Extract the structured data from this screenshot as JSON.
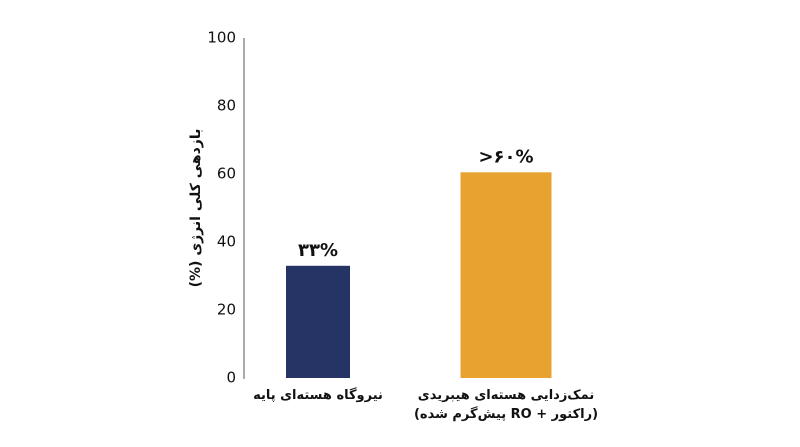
{
  "chart_data": {
    "type": "bar",
    "y_label": "بازدهی کلی انرژی (%)",
    "categories": [
      "نیروگاه هسته‌ای پایه",
      "نمک‌زدایی هسته‌ای هیبریدی\n(راکتور + RO پیش‌گرم شده)"
    ],
    "values": [
      33,
      60.5
    ],
    "value_labels": [
      "۳۳%",
      ">۶۰%"
    ],
    "colors": [
      "#253465",
      "#e8a230"
    ],
    "ylim": [
      0,
      100
    ],
    "yticks": [
      0,
      20,
      40,
      60,
      80,
      100
    ],
    "grid": false
  }
}
